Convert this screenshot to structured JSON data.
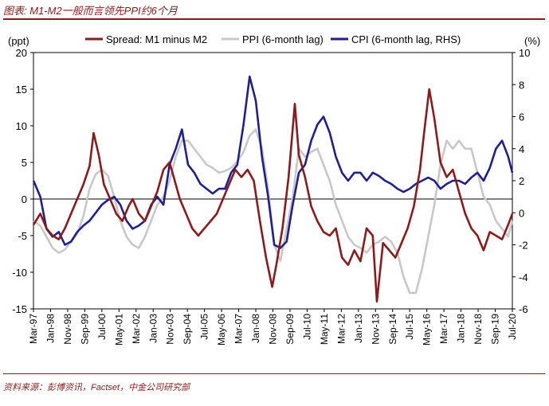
{
  "header": {
    "title": "图表: M1-M2一般而言领先PPI约6个月",
    "source": "资料来源：彭博资讯，Factset，中金公司研究部"
  },
  "chart_data": {
    "type": "line",
    "left_axis": {
      "unit_label": "(ppt)",
      "ylim": [
        -15,
        20
      ],
      "ticks": [
        -15,
        -10,
        -5,
        0,
        5,
        10,
        15,
        20
      ]
    },
    "right_axis": {
      "unit_label": "(%)",
      "ylim": [
        -6,
        10
      ],
      "ticks": [
        -6,
        -4,
        -2,
        0,
        2,
        4,
        6,
        8,
        10
      ]
    },
    "x_range": [
      1997.167,
      2020.5
    ],
    "x_tick_labels": [
      "Mar-97",
      "Jan-98",
      "Nov-98",
      "Sep-99",
      "Jul-00",
      "May-01",
      "Mar-02",
      "Jan-03",
      "Nov-03",
      "Sep-04",
      "Jul-05",
      "May-06",
      "Mar-07",
      "Jan-08",
      "Nov-08",
      "Sep-09",
      "Jul-10",
      "May-11",
      "Mar-12",
      "Jan-13",
      "Nov-13",
      "Sep-14",
      "Jul-15",
      "May-16",
      "Mar-17",
      "Jan-18",
      "Nov-18",
      "Sep-19",
      "Jul-20"
    ],
    "legend_position": "top",
    "series": [
      {
        "name": "Spread: M1 minus M2",
        "axis": "left",
        "color": "#8b1a1a",
        "x": [
          1997.17,
          1997.5,
          1997.8,
          1998.1,
          1998.4,
          1998.7,
          1999.0,
          1999.3,
          1999.6,
          1999.9,
          2000.1,
          2000.35,
          2000.6,
          2000.9,
          2001.2,
          2001.5,
          2001.8,
          2002.0,
          2002.3,
          2002.6,
          2002.9,
          2003.2,
          2003.5,
          2003.8,
          2004.0,
          2004.3,
          2004.6,
          2004.9,
          2005.2,
          2005.5,
          2005.8,
          2006.1,
          2006.4,
          2006.7,
          2007.0,
          2007.3,
          2007.6,
          2007.9,
          2008.2,
          2008.5,
          2008.8,
          2009.0,
          2009.3,
          2009.6,
          2009.9,
          2010.1,
          2010.4,
          2010.7,
          2011.0,
          2011.3,
          2011.6,
          2011.9,
          2012.2,
          2012.5,
          2012.8,
          2013.1,
          2013.4,
          2013.7,
          2013.9,
          2014.2,
          2014.5,
          2014.8,
          2015.1,
          2015.4,
          2015.7,
          2016.0,
          2016.2,
          2016.45,
          2016.7,
          2017.0,
          2017.3,
          2017.6,
          2017.9,
          2018.2,
          2018.5,
          2018.8,
          2019.1,
          2019.4,
          2019.7,
          2020.0,
          2020.3,
          2020.5
        ],
        "values": [
          -3.5,
          -2,
          -4,
          -5,
          -5.5,
          -4,
          -2,
          0,
          2,
          4.5,
          9,
          6,
          2,
          0,
          -2,
          -3,
          -1,
          0,
          -2,
          -3,
          -1,
          1,
          4,
          5,
          3,
          0,
          -2,
          -4,
          -5,
          -4,
          -3,
          -2,
          0,
          2,
          4,
          3,
          4,
          2.5,
          -3,
          -8,
          -12,
          -9,
          -4,
          3,
          13,
          6,
          3,
          -1,
          -3,
          -4.5,
          -5,
          -4,
          -8,
          -9,
          -7,
          -8.5,
          -4,
          -5,
          -14,
          -6,
          -7,
          -8,
          -6,
          -4,
          -1,
          4,
          9,
          15,
          11,
          5,
          3,
          4,
          1,
          -2,
          -4,
          -5,
          -7,
          -4.5,
          -5,
          -5.5,
          -3.5,
          -2
        ]
      },
      {
        "name": "PPI (6-month lag)",
        "axis": "right",
        "color": "#c8c8c8",
        "x": [
          1997.17,
          1997.5,
          1997.8,
          1998.1,
          1998.4,
          1998.7,
          1999.0,
          1999.3,
          1999.6,
          1999.9,
          2000.2,
          2000.5,
          2000.8,
          2001.1,
          2001.4,
          2001.7,
          2002.0,
          2002.3,
          2002.6,
          2002.9,
          2003.2,
          2003.5,
          2003.8,
          2004.1,
          2004.4,
          2004.7,
          2005.0,
          2005.3,
          2005.6,
          2005.9,
          2006.2,
          2006.5,
          2006.8,
          2007.1,
          2007.4,
          2007.7,
          2008.0,
          2008.3,
          2008.6,
          2008.9,
          2009.2,
          2009.5,
          2009.8,
          2010.1,
          2010.4,
          2010.7,
          2011.0,
          2011.3,
          2011.6,
          2011.9,
          2012.2,
          2012.5,
          2012.8,
          2013.1,
          2013.4,
          2013.7,
          2014.0,
          2014.3,
          2014.6,
          2014.9,
          2015.2,
          2015.5,
          2015.8,
          2016.1,
          2016.4,
          2016.7,
          2017.0,
          2017.3,
          2017.6,
          2017.9,
          2018.2,
          2018.5,
          2018.8,
          2019.1,
          2019.4,
          2019.7,
          2020.0,
          2020.3,
          2020.5
        ],
        "values": [
          -0.5,
          -0.8,
          -1.5,
          -2.2,
          -2.5,
          -2.3,
          -1.8,
          -1.3,
          -0.2,
          1.5,
          2.4,
          2.7,
          2.3,
          1.0,
          -0.5,
          -1.5,
          -2.0,
          -2.2,
          -1.5,
          -0.5,
          0.5,
          1.0,
          2.0,
          3.5,
          4.5,
          4.5,
          4.0,
          3.5,
          3.0,
          2.8,
          2.5,
          2.6,
          2.8,
          3.2,
          3.8,
          4.8,
          5.2,
          4.0,
          1.5,
          -2.0,
          -3.0,
          -1.0,
          1.0,
          4.0,
          3.5,
          3.8,
          4.0,
          3.0,
          2.0,
          0.5,
          -0.5,
          -1.5,
          -2.0,
          -2.2,
          -2.5,
          -2.0,
          -1.8,
          -1.5,
          -1.8,
          -2.5,
          -4.0,
          -5.0,
          -5.0,
          -3.5,
          -1.5,
          0.5,
          3.0,
          4.5,
          4.0,
          4.5,
          4.0,
          4.0,
          2.5,
          1.0,
          0.5,
          -0.5,
          -1.0,
          -1.5,
          -0.5
        ]
      },
      {
        "name": "CPI (6-month lag, RHS)",
        "axis": "right",
        "color": "#1f1f8f",
        "x": [
          1997.17,
          1997.5,
          1997.8,
          1998.1,
          1998.4,
          1998.7,
          1999.0,
          1999.3,
          1999.6,
          1999.9,
          2000.2,
          2000.5,
          2000.8,
          2001.1,
          2001.4,
          2001.7,
          2002.0,
          2002.3,
          2002.6,
          2002.9,
          2003.2,
          2003.5,
          2003.8,
          2004.1,
          2004.4,
          2004.7,
          2005.0,
          2005.3,
          2005.6,
          2005.9,
          2006.2,
          2006.5,
          2006.8,
          2007.1,
          2007.4,
          2007.7,
          2008.0,
          2008.3,
          2008.6,
          2008.9,
          2009.2,
          2009.5,
          2009.8,
          2010.1,
          2010.4,
          2010.7,
          2011.0,
          2011.3,
          2011.6,
          2011.9,
          2012.2,
          2012.5,
          2012.8,
          2013.1,
          2013.4,
          2013.7,
          2014.0,
          2014.3,
          2014.6,
          2014.9,
          2015.2,
          2015.5,
          2015.8,
          2016.1,
          2016.4,
          2016.7,
          2017.0,
          2017.3,
          2017.6,
          2017.9,
          2018.2,
          2018.5,
          2018.8,
          2019.1,
          2019.4,
          2019.7,
          2020.0,
          2020.3,
          2020.5
        ],
        "values": [
          2.0,
          1.0,
          -1.0,
          -1.5,
          -1.2,
          -2.0,
          -1.8,
          -1.2,
          -0.8,
          -0.5,
          0.0,
          0.5,
          0.8,
          1.0,
          0.5,
          -0.5,
          -1.0,
          -0.8,
          -0.5,
          0.5,
          1.0,
          0.5,
          3.0,
          4.0,
          5.2,
          3.0,
          2.5,
          1.8,
          1.5,
          1.2,
          1.5,
          1.5,
          2.5,
          3.0,
          5.5,
          8.5,
          7.0,
          3.5,
          1.0,
          -2.0,
          -2.2,
          -1.8,
          0.5,
          2.5,
          3.0,
          4.5,
          5.5,
          6.0,
          5.0,
          3.5,
          2.5,
          2.0,
          2.5,
          2.5,
          2.0,
          2.5,
          2.3,
          2.0,
          1.8,
          1.5,
          1.3,
          1.5,
          1.8,
          2.0,
          2.2,
          2.0,
          1.5,
          1.8,
          2.0,
          2.0,
          1.8,
          2.2,
          2.5,
          2.0,
          2.8,
          4.0,
          4.5,
          3.5,
          2.5
        ]
      }
    ]
  }
}
